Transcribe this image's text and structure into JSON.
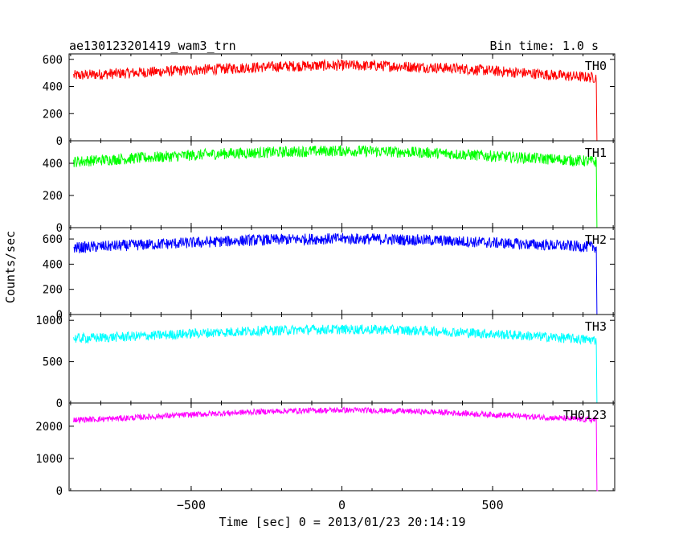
{
  "header": {
    "title": "ae130123201419_wam3_trn",
    "bin_time": "Bin time: 1.0 s"
  },
  "axes": {
    "ylabel": "Counts/sec",
    "xlabel": "Time [sec] 0 = 2013/01/23 20:14:19"
  },
  "chart_data": [
    {
      "type": "line",
      "name": "TH0",
      "color": "#ff0000",
      "x": [
        -890,
        -800,
        -700,
        -600,
        -500,
        -400,
        -300,
        -200,
        -100,
        0,
        100,
        200,
        300,
        400,
        500,
        600,
        700,
        800,
        845,
        846,
        850
      ],
      "y": [
        480,
        490,
        500,
        510,
        520,
        530,
        540,
        548,
        553,
        555,
        553,
        548,
        540,
        530,
        515,
        500,
        485,
        470,
        465,
        0,
        0
      ],
      "noise": 40,
      "ylim": [
        0,
        640
      ],
      "yticks": [
        0,
        200,
        400,
        600
      ]
    },
    {
      "type": "line",
      "name": "TH1",
      "color": "#00ff00",
      "x": [
        -890,
        -800,
        -700,
        -600,
        -500,
        -400,
        -300,
        -200,
        -100,
        0,
        100,
        200,
        300,
        400,
        500,
        600,
        700,
        800,
        845,
        846,
        850
      ],
      "y": [
        410,
        420,
        430,
        440,
        450,
        460,
        465,
        470,
        475,
        478,
        475,
        470,
        465,
        455,
        445,
        435,
        425,
        415,
        410,
        0,
        0
      ],
      "noise": 35,
      "ylim": [
        0,
        540
      ],
      "yticks": [
        0,
        200,
        400
      ]
    },
    {
      "type": "line",
      "name": "TH2",
      "color": "#0000ff",
      "x": [
        -890,
        -800,
        -700,
        -600,
        -500,
        -400,
        -300,
        -200,
        -100,
        0,
        100,
        200,
        300,
        400,
        500,
        600,
        700,
        800,
        845,
        846,
        850
      ],
      "y": [
        530,
        540,
        550,
        560,
        570,
        580,
        590,
        595,
        600,
        602,
        600,
        595,
        590,
        580,
        570,
        560,
        550,
        540,
        535,
        0,
        0
      ],
      "noise": 45,
      "ylim": [
        0,
        690
      ],
      "yticks": [
        0,
        200,
        400,
        600
      ]
    },
    {
      "type": "line",
      "name": "TH3",
      "color": "#00ffff",
      "x": [
        -890,
        -800,
        -700,
        -600,
        -500,
        -400,
        -300,
        -200,
        -100,
        0,
        100,
        200,
        300,
        400,
        500,
        600,
        700,
        800,
        845,
        846,
        850
      ],
      "y": [
        780,
        790,
        805,
        820,
        840,
        855,
        870,
        880,
        888,
        890,
        888,
        880,
        870,
        855,
        835,
        815,
        795,
        770,
        760,
        0,
        0
      ],
      "noise": 60,
      "ylim": [
        0,
        1070
      ],
      "yticks": [
        0,
        500,
        1000
      ]
    },
    {
      "type": "line",
      "name": "TH0123",
      "color": "#ff00ff",
      "x": [
        -890,
        -800,
        -700,
        -600,
        -500,
        -400,
        -300,
        -200,
        -100,
        0,
        100,
        200,
        300,
        400,
        500,
        600,
        700,
        800,
        845,
        846,
        850
      ],
      "y": [
        2200,
        2220,
        2260,
        2310,
        2360,
        2400,
        2440,
        2470,
        2490,
        2500,
        2490,
        2470,
        2440,
        2400,
        2360,
        2310,
        2260,
        2210,
        2190,
        0,
        0
      ],
      "noise": 90,
      "ylim": [
        0,
        2720
      ],
      "yticks": [
        0,
        1000,
        2000
      ]
    }
  ],
  "x_axis": {
    "xlim": [
      -905,
      905
    ],
    "xticks": [
      -500,
      0,
      500
    ],
    "xticklabels": [
      "−500",
      "0",
      "500"
    ]
  }
}
